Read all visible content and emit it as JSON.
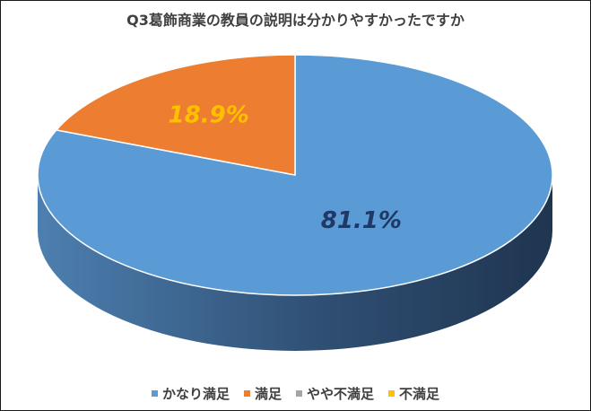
{
  "chart_data": {
    "type": "pie",
    "title": "Q3葛飾商業の教員の説明は分かりやすかったですか",
    "categories": [
      "かなり満足",
      "満足",
      "やや不満足",
      "不満足"
    ],
    "values": [
      81.1,
      18.9,
      0,
      0
    ],
    "data_labels": [
      "81.1%",
      "18.9%",
      "",
      ""
    ],
    "colors": [
      "#5b9bd5",
      "#ed7d31",
      "#a5a5a5",
      "#ffc000"
    ],
    "label_colors": [
      "#1f3864",
      "#ffc000",
      "",
      ""
    ],
    "legend_position": "bottom",
    "style": "3d"
  }
}
